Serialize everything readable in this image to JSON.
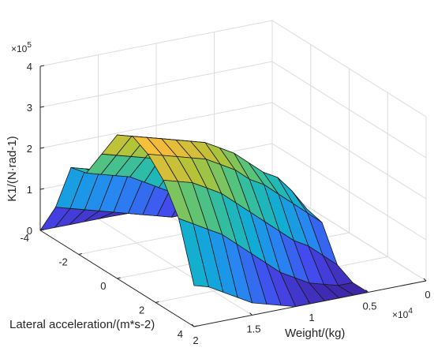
{
  "chart_data": {
    "type": "surface3d",
    "zlabel": "K1/(N·rad-1)",
    "xlabel": "Weight/(kg)",
    "ylabel": "Lateral acceleration/(m*s-2)",
    "z_multiplier": "×10^5",
    "x_multiplier": "×10^4",
    "x_ticks": [
      "2",
      "1.5",
      "1",
      "0.5",
      "0"
    ],
    "y_ticks": [
      "-4",
      "-2",
      "0",
      "2",
      "4"
    ],
    "z_ticks": [
      "0",
      "1",
      "2",
      "3",
      "4"
    ],
    "xlim": [
      0,
      2
    ],
    "ylim": [
      -4,
      4
    ],
    "zlim": [
      0,
      4
    ],
    "colormap": "parula",
    "weights": [
      0.5,
      0.625,
      0.75,
      0.875,
      1.0,
      1.125,
      1.25,
      1.375,
      1.5,
      1.625,
      1.75,
      1.875,
      2.0
    ],
    "accelerations": [
      -4,
      -3.2,
      -2.4,
      -1.6,
      -0.8,
      0,
      0.8,
      1.6,
      2.4,
      3.2,
      4
    ],
    "values": [
      [
        0.0,
        0.0,
        0.3,
        0.2,
        0.6,
        1.0,
        1.1,
        1.0,
        0.2,
        0.0,
        0.0
      ],
      [
        0.0,
        0.0,
        0.4,
        0.3,
        0.7,
        1.4,
        1.6,
        1.3,
        0.5,
        0.0,
        0.0
      ],
      [
        0.0,
        0.0,
        0.5,
        0.4,
        1.0,
        1.8,
        2.0,
        1.6,
        0.8,
        0.1,
        0.0
      ],
      [
        0.0,
        0.0,
        0.7,
        0.6,
        1.2,
        2.1,
        2.2,
        1.9,
        1.0,
        0.2,
        0.0
      ],
      [
        0.0,
        0.0,
        0.9,
        0.8,
        1.5,
        2.4,
        2.5,
        2.2,
        1.3,
        0.4,
        0.0
      ],
      [
        0.0,
        0.1,
        1.1,
        1.0,
        1.8,
        2.6,
        2.8,
        2.4,
        1.6,
        0.6,
        0.0
      ],
      [
        0.0,
        0.2,
        1.3,
        1.2,
        2.0,
        2.8,
        3.0,
        2.7,
        1.9,
        0.9,
        0.1
      ],
      [
        0.0,
        0.3,
        1.4,
        1.4,
        2.2,
        3.0,
        3.2,
        2.9,
        2.2,
        1.2,
        0.2
      ],
      [
        0.0,
        0.4,
        1.6,
        1.6,
        2.4,
        3.1,
        3.3,
        3.1,
        2.5,
        1.5,
        0.3
      ],
      [
        0.0,
        0.5,
        1.7,
        1.8,
        2.5,
        3.2,
        3.4,
        3.2,
        2.7,
        1.8,
        0.5
      ],
      [
        0.0,
        0.6,
        1.8,
        1.9,
        2.6,
        3.3,
        3.5,
        3.3,
        2.9,
        2.0,
        0.7
      ],
      [
        0.0,
        0.7,
        1.9,
        2.0,
        2.7,
        3.4,
        3.6,
        3.4,
        3.0,
        2.2,
        0.9
      ],
      [
        0.0,
        0.8,
        2.0,
        2.1,
        2.8,
        3.5,
        3.7,
        3.5,
        3.1,
        2.4,
        1.0
      ]
    ]
  }
}
